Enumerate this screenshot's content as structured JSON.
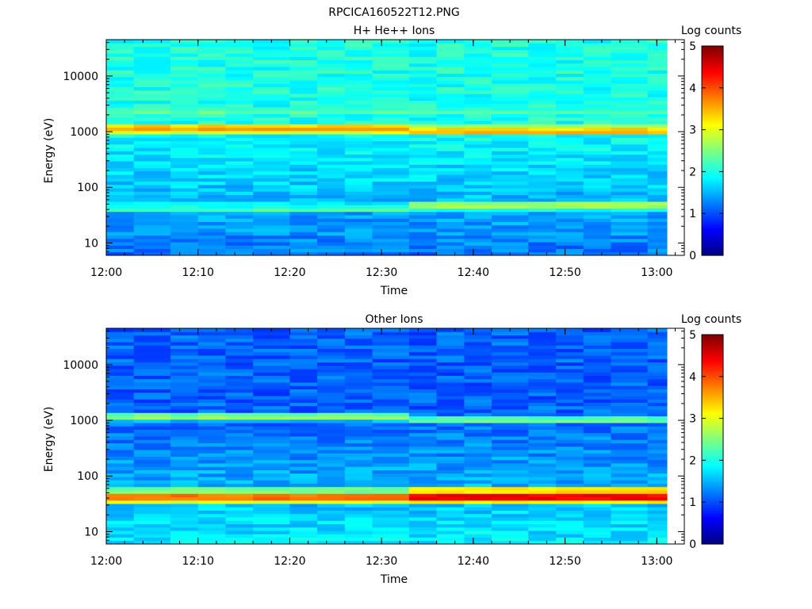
{
  "title": "RPCICA160522T12.PNG",
  "panels": [
    {
      "title": "H+ He++ Ions",
      "ylabel": "Energy (eV)",
      "xlabel": "Time",
      "colorbar_label": "Log counts"
    },
    {
      "title": "Other Ions",
      "ylabel": "Energy (eV)",
      "xlabel": "Time",
      "colorbar_label": "Log counts"
    }
  ],
  "chart_data": [
    {
      "type": "heatmap",
      "title": "H+ He++ Ions",
      "xlabel": "Time",
      "ylabel": "Energy (eV)",
      "x_ticks": [
        "12:00",
        "12:10",
        "12:20",
        "12:30",
        "12:40",
        "12:50",
        "13:00"
      ],
      "y_ticks": [
        "10",
        "100",
        "1000",
        "10000"
      ],
      "y_scale": "log",
      "ylim": [
        6,
        45000
      ],
      "xlim": [
        "12:00",
        "13:03"
      ],
      "colorbar": {
        "label": "Log counts",
        "min": 0,
        "max": 5,
        "ticks": [
          "0",
          "1",
          "2",
          "3",
          "4",
          "5"
        ],
        "colormap": "jet"
      },
      "time_bins": [
        "12:00",
        "12:03",
        "12:07",
        "12:10",
        "12:13",
        "12:16",
        "12:20",
        "12:23",
        "12:26",
        "12:29",
        "12:33",
        "12:36",
        "12:39",
        "12:42",
        "12:46",
        "12:49",
        "12:52",
        "12:55",
        "12:59"
      ],
      "bands": [
        {
          "energy_eV": 2300,
          "level_first_half": 2.4,
          "level_second_half": 2.3
        },
        {
          "energy_eV": 1150,
          "level_first_half": 3.6,
          "level_second_half": 3.0
        },
        {
          "energy_eV": 1000,
          "level_first_half": 3.0,
          "level_second_half": 3.6
        },
        {
          "energy_eV": 48,
          "level_first_half": 2.0,
          "level_second_half": 2.8
        },
        {
          "energy_eV": 40,
          "level_first_half": 2.3,
          "level_second_half": 2.0
        }
      ],
      "background_level_high_energy": 2.0,
      "background_level_low_energy": 1.2
    },
    {
      "type": "heatmap",
      "title": "Other Ions",
      "xlabel": "Time",
      "ylabel": "Energy (eV)",
      "x_ticks": [
        "12:00",
        "12:10",
        "12:20",
        "12:30",
        "12:40",
        "12:50",
        "13:00"
      ],
      "y_ticks": [
        "10",
        "100",
        "1000",
        "10000"
      ],
      "y_scale": "log",
      "ylim": [
        6,
        45000
      ],
      "xlim": [
        "12:00",
        "13:03"
      ],
      "colorbar": {
        "label": "Log counts",
        "min": 0,
        "max": 5,
        "ticks": [
          "0",
          "1",
          "2",
          "3",
          "4",
          "5"
        ],
        "colormap": "jet"
      },
      "time_bins": [
        "12:00",
        "12:03",
        "12:07",
        "12:10",
        "12:13",
        "12:16",
        "12:20",
        "12:23",
        "12:26",
        "12:29",
        "12:33",
        "12:36",
        "12:39",
        "12:42",
        "12:46",
        "12:49",
        "12:52",
        "12:55",
        "12:59"
      ],
      "bands": [
        {
          "energy_eV": 1150,
          "level_first_half": 2.6,
          "level_second_half": 1.4
        },
        {
          "energy_eV": 1000,
          "level_first_half": 1.6,
          "level_second_half": 2.5
        },
        {
          "energy_eV": 55,
          "level_first_half": 2.6,
          "level_second_half": 3.4
        },
        {
          "energy_eV": 42,
          "level_first_half": 4.0,
          "level_second_half": 4.6
        },
        {
          "energy_eV": 35,
          "level_first_half": 3.0,
          "level_second_half": 3.2
        }
      ],
      "background_level_high_energy": 1.1,
      "background_level_low_energy": 1.8
    }
  ]
}
